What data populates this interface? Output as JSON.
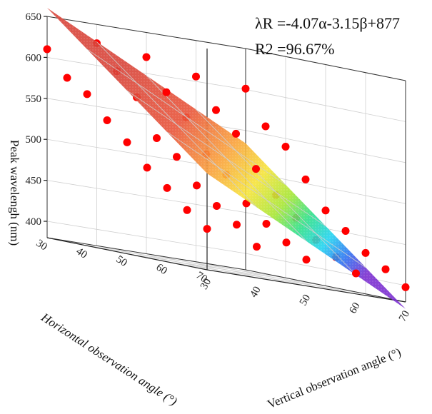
{
  "chart_data": {
    "type": "scatter",
    "title": "",
    "xlabel": "Horizontal observation angle (°)",
    "ylabel": "Vertical observation angle (°)",
    "zlabel": "Peak wavelengh (nm)",
    "xticks": [
      "30",
      "40",
      "50",
      "60",
      "70"
    ],
    "yticks": [
      "30",
      "40",
      "50",
      "60",
      "70"
    ],
    "zticks": [
      "400",
      "450",
      "500",
      "550",
      "600",
      "650"
    ],
    "xlim": [
      30,
      70
    ],
    "ylim": [
      30,
      70
    ],
    "zlim": [
      380,
      650
    ],
    "fit_surface": {
      "equation": "λR =-4.07α-3.15β+877",
      "r_squared": "R2 =96.67%",
      "intercept": 877,
      "coef_alpha": -4.07,
      "coef_beta": -3.15,
      "colormap": [
        "#7b2fd0",
        "#2f6ff0",
        "#22d3f0",
        "#2fe08a",
        "#a8e634",
        "#f6e33a",
        "#f9a03a",
        "#e8543a",
        "#d8453a"
      ]
    },
    "series": [
      {
        "marker_color": "#ff0000",
        "points": [
          {
            "x": 30,
            "y": 30,
            "z": 610
          },
          {
            "x": 30,
            "y": 40,
            "z": 627
          },
          {
            "x": 30,
            "y": 50,
            "z": 620
          },
          {
            "x": 30,
            "y": 60,
            "z": 606
          },
          {
            "x": 30,
            "y": 70,
            "z": 601
          },
          {
            "x": 35,
            "y": 30,
            "z": 580
          },
          {
            "x": 35,
            "y": 40,
            "z": 598
          },
          {
            "x": 35,
            "y": 50,
            "z": 582
          },
          {
            "x": 35,
            "y": 60,
            "z": 570
          },
          {
            "x": 35,
            "y": 70,
            "z": 560
          },
          {
            "x": 40,
            "y": 30,
            "z": 565
          },
          {
            "x": 40,
            "y": 40,
            "z": 571
          },
          {
            "x": 40,
            "y": 50,
            "z": 556
          },
          {
            "x": 40,
            "y": 60,
            "z": 546
          },
          {
            "x": 40,
            "y": 70,
            "z": 540
          },
          {
            "x": 45,
            "y": 30,
            "z": 538
          },
          {
            "x": 45,
            "y": 40,
            "z": 526
          },
          {
            "x": 45,
            "y": 50,
            "z": 516
          },
          {
            "x": 45,
            "y": 60,
            "z": 508
          },
          {
            "x": 45,
            "y": 70,
            "z": 505
          },
          {
            "x": 50,
            "y": 30,
            "z": 516
          },
          {
            "x": 50,
            "y": 40,
            "z": 508
          },
          {
            "x": 50,
            "y": 50,
            "z": 496
          },
          {
            "x": 50,
            "y": 60,
            "z": 481
          },
          {
            "x": 50,
            "y": 70,
            "z": 472
          },
          {
            "x": 55,
            "y": 30,
            "z": 490
          },
          {
            "x": 55,
            "y": 40,
            "z": 478
          },
          {
            "x": 55,
            "y": 50,
            "z": 466
          },
          {
            "x": 55,
            "y": 60,
            "z": 458
          },
          {
            "x": 55,
            "y": 70,
            "z": 452
          },
          {
            "x": 60,
            "y": 30,
            "z": 470
          },
          {
            "x": 60,
            "y": 40,
            "z": 458
          },
          {
            "x": 60,
            "y": 50,
            "z": 446
          },
          {
            "x": 60,
            "y": 60,
            "z": 436
          },
          {
            "x": 60,
            "y": 70,
            "z": 430
          },
          {
            "x": 65,
            "y": 30,
            "z": 448
          },
          {
            "x": 65,
            "y": 40,
            "z": 440
          },
          {
            "x": 65,
            "y": 50,
            "z": 428
          },
          {
            "x": 65,
            "y": 60,
            "z": 420
          },
          {
            "x": 65,
            "y": 70,
            "z": 415
          },
          {
            "x": 70,
            "y": 30,
            "z": 430
          },
          {
            "x": 70,
            "y": 40,
            "z": 418
          },
          {
            "x": 70,
            "y": 50,
            "z": 412
          },
          {
            "x": 70,
            "y": 60,
            "z": 405
          },
          {
            "x": 70,
            "y": 70,
            "z": 398
          }
        ]
      }
    ],
    "grid": true,
    "legend": "none"
  }
}
